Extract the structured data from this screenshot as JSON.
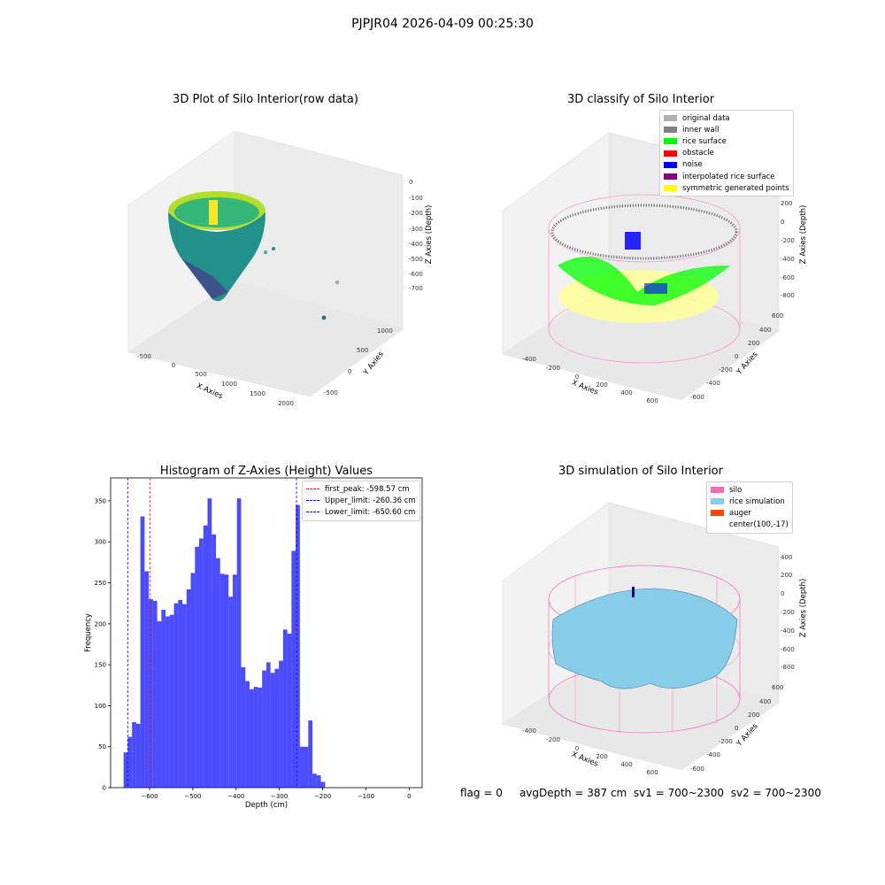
{
  "figure": {
    "suptitle": "PJPJR04 2026-04-09 00:25:30",
    "status": {
      "flag": "flag = 0",
      "avg": "avgDepth = 387 cm",
      "sv1": "sv1 = 700~2300",
      "sv2": "sv2 = 700~2300"
    }
  },
  "panels": {
    "raw": {
      "title": "3D Plot of Silo Interior(row data)",
      "xlabel": "X Axies",
      "ylabel": "Y Axies",
      "zlabel": "Z Axies (Depth)",
      "xticks": [
        "-500",
        "0",
        "500",
        "1000",
        "1500",
        "2000"
      ],
      "yticks": [
        "1000",
        "500",
        "0",
        "-500"
      ],
      "zticks": [
        "0",
        "-100",
        "-200",
        "-300",
        "-400",
        "-500",
        "-600",
        "-700"
      ]
    },
    "classify": {
      "title": "3D classify of Silo Interior",
      "xlabel": "X Axies",
      "ylabel": "Y Axies",
      "zlabel": "Z Axies (Depth)",
      "xticks": [
        "-400",
        "-200",
        "0",
        "200",
        "400",
        "600"
      ],
      "yticks": [
        "600",
        "400",
        "200",
        "0",
        "-200",
        "-400",
        "-600"
      ],
      "zticks": [
        "400",
        "200",
        "0",
        "-200",
        "-400",
        "-600",
        "-800"
      ],
      "legend": [
        {
          "label": "original data",
          "color": "#b0b0b0"
        },
        {
          "label": "inner wall",
          "color": "#808080"
        },
        {
          "label": "rice surface",
          "color": "#00ff00"
        },
        {
          "label": "obstacle",
          "color": "#ff0000"
        },
        {
          "label": "noise",
          "color": "#0000ff"
        },
        {
          "label": "interpolated rice surface",
          "color": "#800080"
        },
        {
          "label": "symmetric generated points",
          "color": "#ffff00"
        }
      ]
    },
    "simulation": {
      "title": "3D simulation of Silo Interior",
      "xlabel": "X Axies",
      "ylabel": "Y Axies",
      "zlabel": "Z Axies (Depth)",
      "xticks": [
        "-400",
        "-200",
        "0",
        "200",
        "400",
        "600"
      ],
      "yticks": [
        "600",
        "400",
        "200",
        "0",
        "-200",
        "-400",
        "-600"
      ],
      "zticks": [
        "400",
        "200",
        "0",
        "-200",
        "-400",
        "-600",
        "-800"
      ],
      "legend": [
        {
          "label": "silo",
          "color": "#ff69b4"
        },
        {
          "label": "rice simulation",
          "color": "#87ceeb"
        },
        {
          "label": "auger",
          "color": "#ff4500"
        },
        {
          "label": "center(100,-17)",
          "color": "#ffffff"
        }
      ]
    }
  },
  "chart_data": {
    "type": "bar",
    "title": "Histogram of Z-Axies (Height) Values",
    "xlabel": "Depth (cm)",
    "ylabel": "Frequency",
    "xlim": [
      -690,
      30
    ],
    "ylim": [
      0,
      378
    ],
    "x_ticks": [
      -600,
      -500,
      -400,
      -300,
      -200,
      -100,
      0
    ],
    "y_ticks": [
      0,
      50,
      100,
      150,
      200,
      250,
      300,
      350
    ],
    "bar_color": "#0000ff",
    "bin_start": -660,
    "bin_width": 9.7,
    "values": [
      43,
      62,
      80,
      78,
      331,
      264,
      230,
      228,
      203,
      217,
      209,
      211,
      225,
      229,
      224,
      242,
      262,
      294,
      304,
      320,
      353,
      309,
      280,
      261,
      260,
      233,
      260,
      353,
      147,
      130,
      120,
      123,
      122,
      143,
      153,
      140,
      145,
      155,
      193,
      188,
      289,
      345,
      50,
      50,
      82,
      17,
      15,
      7
    ],
    "vlines": [
      {
        "label": "first_peak: -598.57 cm",
        "x": -598.57,
        "color": "#ff0000"
      },
      {
        "label": "Upper_limit: -260.36 cm",
        "x": -260.36,
        "color": "#0000ff"
      },
      {
        "label": "Lower_limit: -650.60 cm",
        "x": -650.6,
        "color": "#0000ff"
      }
    ]
  }
}
